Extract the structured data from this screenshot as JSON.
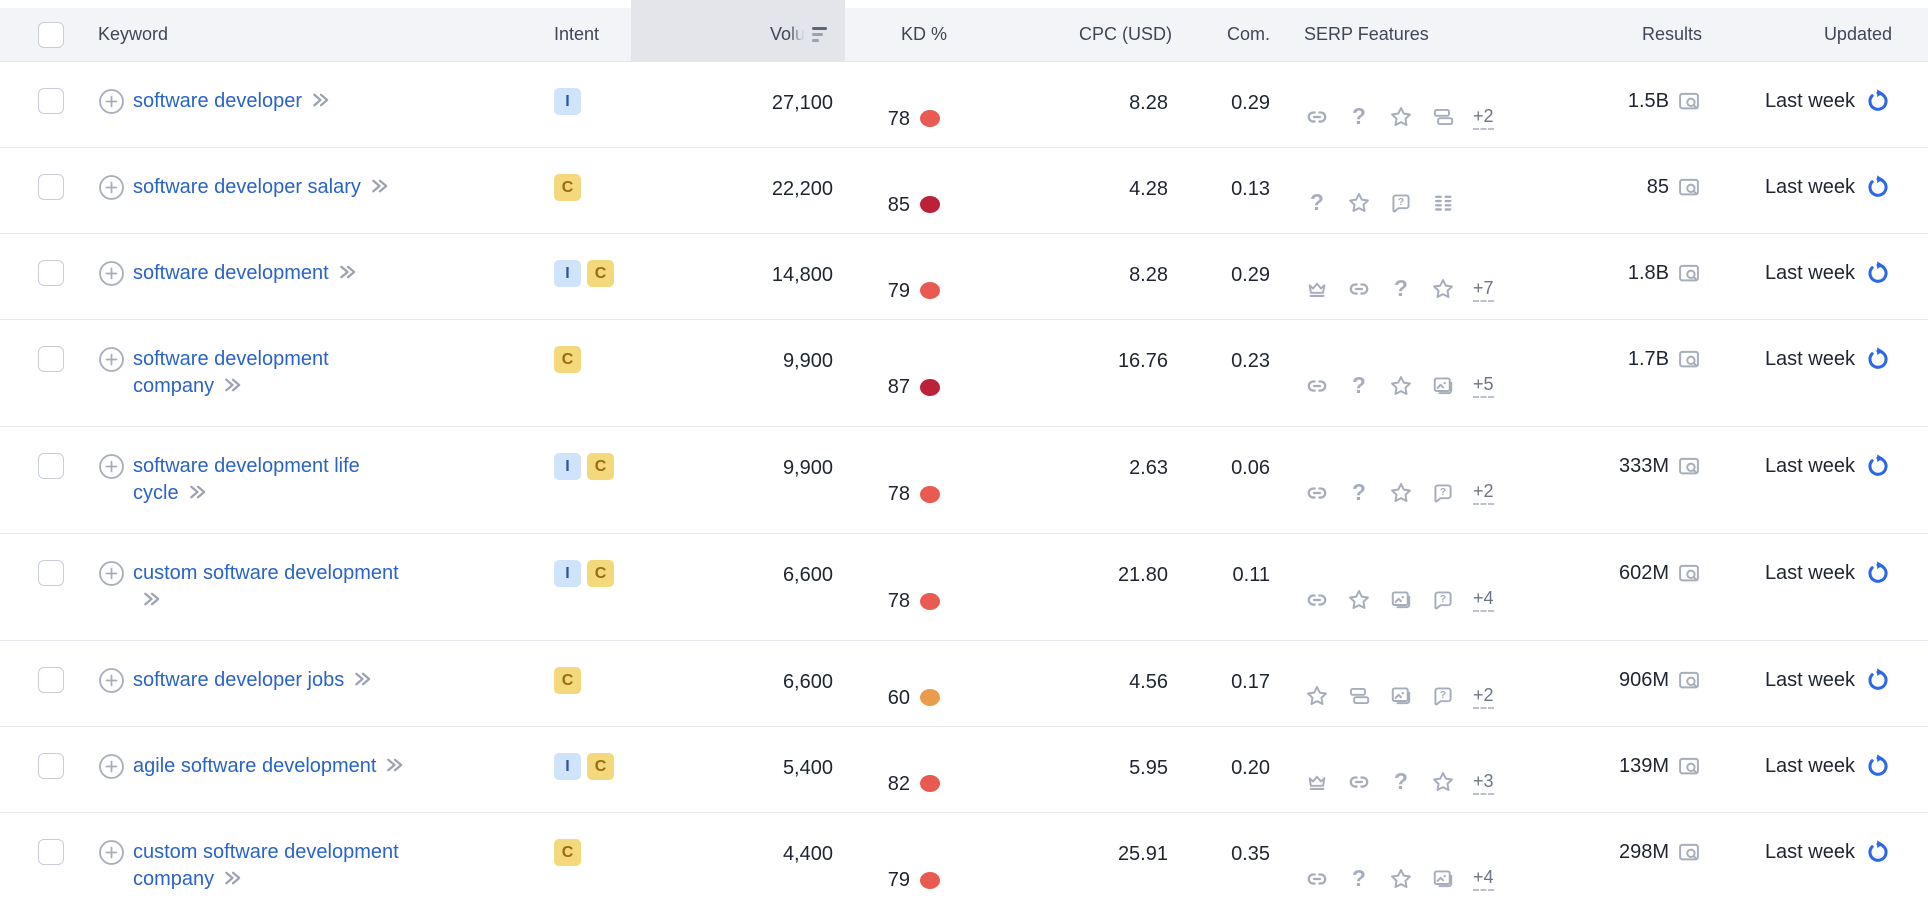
{
  "table": {
    "headers": {
      "keyword": "Keyword",
      "intent": "Intent",
      "volume": "Volu",
      "kd": "KD %",
      "cpc": "CPC (USD)",
      "com": "Com.",
      "serp_features": "SERP Features",
      "results": "Results",
      "updated": "Updated"
    },
    "sort": {
      "column": "volume",
      "direction": "descending"
    },
    "rows": [
      {
        "keyword": "software developer",
        "keyword_lines": [
          "software developer"
        ],
        "intents": [
          "I"
        ],
        "volume": "27,100",
        "kd": "78",
        "kd_level": "red",
        "cpc": "8.28",
        "com": "0.29",
        "serp_icons": [
          "link-icon",
          "question-icon",
          "star-icon",
          "sitelinks-icon"
        ],
        "serp_more": "+2",
        "results": "1.5B",
        "updated": "Last week"
      },
      {
        "keyword": "software developer salary",
        "keyword_lines": [
          "software developer salary"
        ],
        "intents": [
          "C"
        ],
        "volume": "22,200",
        "kd": "85",
        "kd_level": "dark_red",
        "cpc": "4.28",
        "com": "0.13",
        "serp_icons": [
          "question-icon",
          "star-icon",
          "faq-icon",
          "list-icon"
        ],
        "serp_more": "",
        "results": "85",
        "updated": "Last week"
      },
      {
        "keyword": "software development",
        "keyword_lines": [
          "software development"
        ],
        "intents": [
          "I",
          "C"
        ],
        "volume": "14,800",
        "kd": "79",
        "kd_level": "red",
        "cpc": "8.28",
        "com": "0.29",
        "serp_icons": [
          "crown-icon",
          "link-icon",
          "question-icon",
          "star-icon"
        ],
        "serp_more": "+7",
        "results": "1.8B",
        "updated": "Last week"
      },
      {
        "keyword": "software development company",
        "keyword_lines": [
          "software development",
          "company"
        ],
        "intents": [
          "C"
        ],
        "volume": "9,900",
        "kd": "87",
        "kd_level": "dark_red",
        "cpc": "16.76",
        "com": "0.23",
        "serp_icons": [
          "link-icon",
          "question-icon",
          "star-icon",
          "image-icon"
        ],
        "serp_more": "+5",
        "results": "1.7B",
        "updated": "Last week"
      },
      {
        "keyword": "software development life cycle",
        "keyword_lines": [
          "software development life",
          "cycle"
        ],
        "intents": [
          "I",
          "C"
        ],
        "volume": "9,900",
        "kd": "78",
        "kd_level": "red",
        "cpc": "2.63",
        "com": "0.06",
        "serp_icons": [
          "link-icon",
          "question-icon",
          "star-icon",
          "faq-icon"
        ],
        "serp_more": "+2",
        "results": "333M",
        "updated": "Last week"
      },
      {
        "keyword": "custom software development",
        "keyword_lines": [
          "custom software development",
          ""
        ],
        "intents": [
          "I",
          "C"
        ],
        "volume": "6,600",
        "kd": "78",
        "kd_level": "red",
        "cpc": "21.80",
        "com": "0.11",
        "serp_icons": [
          "link-icon",
          "star-icon",
          "image-icon",
          "faq-icon"
        ],
        "serp_more": "+4",
        "results": "602M",
        "updated": "Last week"
      },
      {
        "keyword": "software developer jobs",
        "keyword_lines": [
          "software developer jobs"
        ],
        "intents": [
          "C"
        ],
        "volume": "6,600",
        "kd": "60",
        "kd_level": "orange",
        "cpc": "4.56",
        "com": "0.17",
        "serp_icons": [
          "star-icon",
          "sitelinks-icon",
          "image-icon",
          "faq-icon"
        ],
        "serp_more": "+2",
        "results": "906M",
        "updated": "Last week"
      },
      {
        "keyword": "agile software development",
        "keyword_lines": [
          "agile software development"
        ],
        "intents": [
          "I",
          "C"
        ],
        "volume": "5,400",
        "kd": "82",
        "kd_level": "red",
        "cpc": "5.95",
        "com": "0.20",
        "serp_icons": [
          "crown-icon",
          "link-icon",
          "question-icon",
          "star-icon"
        ],
        "serp_more": "+3",
        "results": "139M",
        "updated": "Last week"
      },
      {
        "keyword": "custom software development company",
        "keyword_lines": [
          "custom software development",
          "company"
        ],
        "intents": [
          "C"
        ],
        "volume": "4,400",
        "kd": "79",
        "kd_level": "red",
        "cpc": "25.91",
        "com": "0.35",
        "serp_icons": [
          "link-icon",
          "question-icon",
          "star-icon",
          "image-icon"
        ],
        "serp_more": "+4",
        "results": "298M",
        "updated": "Last week"
      }
    ]
  },
  "intent_badges": {
    "I": {
      "label": "I",
      "bg": "#cfe3fb",
      "fg": "#2d55a4"
    },
    "C": {
      "label": "C",
      "bg": "#f3d87c",
      "fg": "#9a6b16"
    }
  },
  "colors": {
    "kd_colors": {
      "red": "#e85a52",
      "dark_red": "#bb2139",
      "orange": "#eb9b4d"
    },
    "link_blue": "#2a63c8",
    "icon_gray": "#a6adbb",
    "refresh_blue": "#2c67e8",
    "header_bg": "#f3f4f8",
    "volume_sorted_bg": "#e3e5eb"
  }
}
